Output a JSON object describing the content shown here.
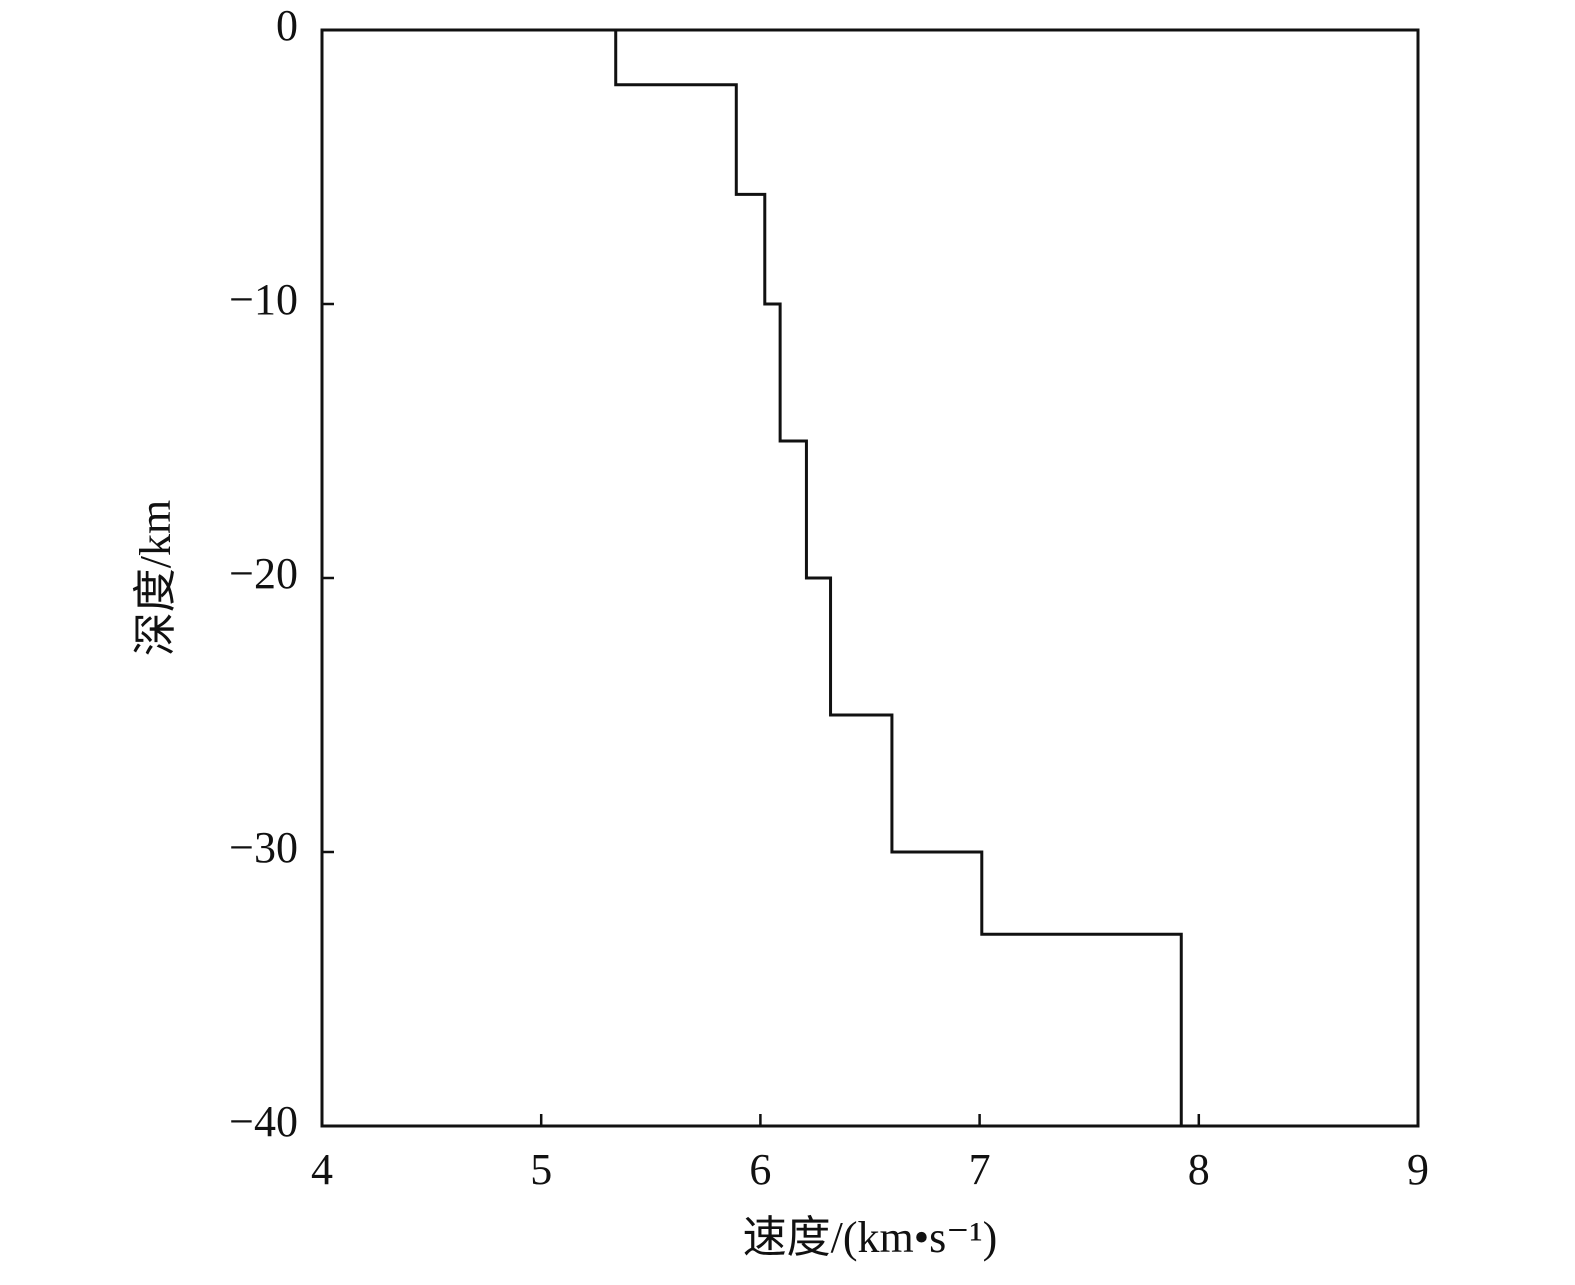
{
  "chart_data": {
    "type": "line",
    "x_label": "速度/(km•s⁻¹)",
    "y_label": "深度/km",
    "x": [
      5.34,
      5.34,
      5.89,
      5.89,
      6.02,
      6.02,
      6.09,
      6.09,
      6.21,
      6.21,
      6.32,
      6.32,
      6.6,
      6.6,
      7.01,
      7.01,
      7.92,
      7.92
    ],
    "y": [
      0,
      -2,
      -2,
      -6,
      -6,
      -10,
      -10,
      -15,
      -15,
      -20,
      -20,
      -25,
      -25,
      -30,
      -30,
      -33,
      -33,
      -40
    ],
    "color": "#111111",
    "xlim": [
      4,
      9
    ],
    "xticks": [
      4,
      5,
      6,
      7,
      8,
      9
    ],
    "ylim": [
      -40,
      0
    ],
    "yticks": [
      0,
      {
        "value": -10,
        "label": "−10"
      },
      {
        "value": -20,
        "label": "−20"
      },
      {
        "value": -30,
        "label": "−30"
      },
      {
        "value": -40,
        "label": "−40"
      }
    ]
  }
}
